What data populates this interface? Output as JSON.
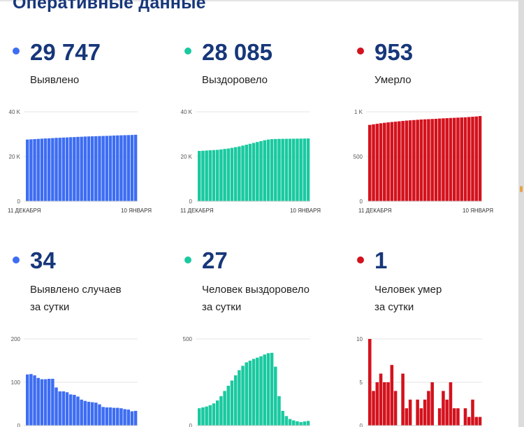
{
  "page": {
    "title": "Оперативные данные"
  },
  "colors": {
    "blue": "#3d6df2",
    "teal": "#1ac9a0",
    "red": "#d3121d",
    "navy": "#17377a"
  },
  "stats": [
    {
      "id": "detected",
      "value": "29 747",
      "label_line1": "Выявлено",
      "label_line2": "",
      "color": "#3d6df2"
    },
    {
      "id": "recovered",
      "value": "28 085",
      "label_line1": "Выздоровело",
      "label_line2": "",
      "color": "#1ac9a0"
    },
    {
      "id": "died",
      "value": "953",
      "label_line1": "Умерло",
      "label_line2": "",
      "color": "#d3121d"
    },
    {
      "id": "daily-detected",
      "value": "34",
      "label_line1": "Выявлено случаев",
      "label_line2": "за сутки",
      "color": "#3d6df2"
    },
    {
      "id": "daily-recovered",
      "value": "27",
      "label_line1": "Человек выздоровело",
      "label_line2": "за сутки",
      "color": "#1ac9a0"
    },
    {
      "id": "daily-died",
      "value": "1",
      "label_line1": "Человек умер",
      "label_line2": "за сутки",
      "color": "#d3121d"
    }
  ],
  "chart_data": [
    {
      "type": "bar",
      "title": "Выявлено",
      "color": "#3d6df2",
      "ylim": [
        0,
        40000
      ],
      "ytick_values": [
        0,
        20000,
        40000
      ],
      "ytick_labels": [
        "0",
        "20 K",
        "40 K"
      ],
      "xtick_labels": [
        "11 ДЕКАБРЯ",
        "10 ЯНВАРЯ"
      ],
      "values": [
        27600,
        27700,
        27800,
        27900,
        28000,
        28100,
        28150,
        28250,
        28350,
        28400,
        28500,
        28550,
        28650,
        28700,
        28800,
        28850,
        28950,
        29000,
        29050,
        29100,
        29150,
        29200,
        29250,
        29300,
        29400,
        29450,
        29500,
        29550,
        29600,
        29650,
        29747
      ]
    },
    {
      "type": "bar",
      "title": "Выздоровело",
      "color": "#1ac9a0",
      "ylim": [
        0,
        40000
      ],
      "ytick_values": [
        0,
        20000,
        40000
      ],
      "ytick_labels": [
        "0",
        "20 K",
        "40 K"
      ],
      "xtick_labels": [
        "11 ДЕКАБРЯ",
        "10 ЯНВАРЯ"
      ],
      "values": [
        22500,
        22600,
        22700,
        22800,
        22900,
        23000,
        23200,
        23400,
        23600,
        23900,
        24200,
        24500,
        24900,
        25300,
        25700,
        26100,
        26500,
        26900,
        27300,
        27600,
        27800,
        27850,
        27900,
        27920,
        27940,
        27960,
        27980,
        28000,
        28030,
        28060,
        28085
      ]
    },
    {
      "type": "bar",
      "title": "Умерло",
      "color": "#d3121d",
      "ylim": [
        0,
        1000
      ],
      "ytick_values": [
        0,
        500,
        1000
      ],
      "ytick_labels": [
        "0",
        "500",
        "1 K"
      ],
      "xtick_labels": [
        "11 ДЕКАБРЯ",
        "10 ЯНВАРЯ"
      ],
      "values": [
        854,
        860,
        866,
        872,
        877,
        882,
        886,
        890,
        894,
        898,
        902,
        905,
        908,
        911,
        914,
        916,
        918,
        920,
        922,
        925,
        927,
        929,
        931,
        933,
        935,
        937,
        939,
        942,
        945,
        948,
        953
      ]
    },
    {
      "type": "bar",
      "title": "Выявлено случаев за сутки",
      "color": "#3d6df2",
      "ylim": [
        0,
        200
      ],
      "ytick_values": [
        0,
        100,
        200
      ],
      "ytick_labels": [
        "0",
        "100",
        "200"
      ],
      "xtick_labels": [],
      "values": [
        118,
        119,
        116,
        110,
        107,
        107,
        108,
        108,
        88,
        79,
        79,
        77,
        72,
        71,
        67,
        60,
        57,
        55,
        54,
        53,
        49,
        43,
        42,
        42,
        41,
        41,
        40,
        38,
        37,
        33,
        34
      ]
    },
    {
      "type": "bar",
      "title": "Человек выздоровело за сутки",
      "color": "#1ac9a0",
      "ylim": [
        0,
        500
      ],
      "ytick_values": [
        0,
        500
      ],
      "ytick_labels": [
        "0",
        "500"
      ],
      "xtick_labels": [],
      "values": [
        100,
        105,
        110,
        118,
        128,
        145,
        170,
        200,
        230,
        260,
        290,
        320,
        345,
        365,
        375,
        385,
        392,
        400,
        410,
        418,
        420,
        340,
        170,
        85,
        55,
        38,
        30,
        25,
        20,
        24,
        27
      ]
    },
    {
      "type": "bar",
      "title": "Человек умер за сутки",
      "color": "#d3121d",
      "ylim": [
        0,
        10
      ],
      "ytick_values": [
        0,
        5,
        10
      ],
      "ytick_labels": [
        "0",
        "5",
        "10"
      ],
      "xtick_labels": [],
      "values": [
        10,
        4,
        5,
        6,
        5,
        5,
        7,
        4,
        0,
        6,
        2,
        3,
        0,
        3,
        2,
        3,
        4,
        5,
        0,
        2,
        4,
        3,
        5,
        2,
        2,
        0,
        2,
        1,
        3,
        1,
        1
      ]
    }
  ]
}
